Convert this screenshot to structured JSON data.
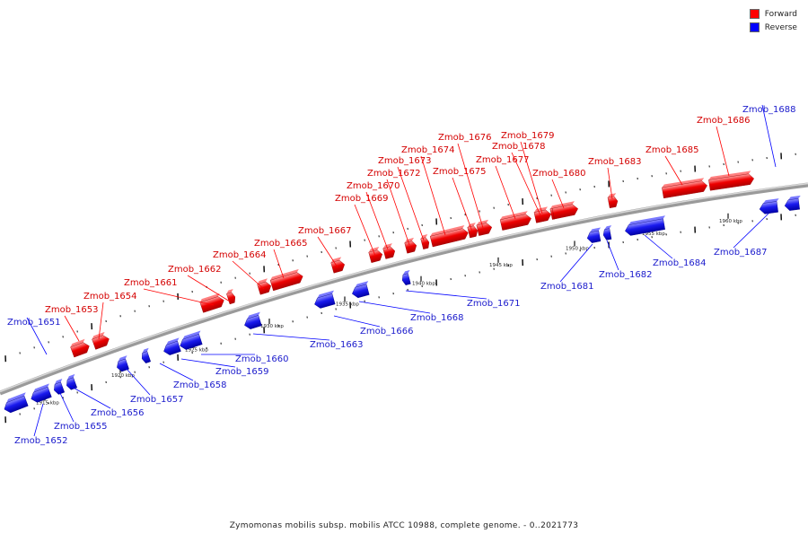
{
  "legend": {
    "forward_label": "Forward",
    "reverse_label": "Reverse",
    "forward_color": "#ff0000",
    "reverse_color": "#0000ff"
  },
  "caption": "Zymomonas mobilis subsp. mobilis ATCC 10988, complete genome. - 0..2021773",
  "axis": {
    "tick_labels": [
      "1915 kbp",
      "1920 kbp",
      "1925 kbp",
      "1930 kbp",
      "1935 kbp",
      "1940 kbp",
      "1945 kbp",
      "1950 kbp",
      "1955 kbp",
      "1960 kbp"
    ]
  },
  "genes": [
    {
      "name": "Zmob_1651",
      "strand": "reverse"
    },
    {
      "name": "Zmob_1652",
      "strand": "reverse"
    },
    {
      "name": "Zmob_1653",
      "strand": "forward"
    },
    {
      "name": "Zmob_1654",
      "strand": "forward"
    },
    {
      "name": "Zmob_1655",
      "strand": "reverse"
    },
    {
      "name": "Zmob_1656",
      "strand": "reverse"
    },
    {
      "name": "Zmob_1657",
      "strand": "reverse"
    },
    {
      "name": "Zmob_1658",
      "strand": "reverse"
    },
    {
      "name": "Zmob_1659",
      "strand": "reverse"
    },
    {
      "name": "Zmob_1660",
      "strand": "reverse"
    },
    {
      "name": "Zmob_1661",
      "strand": "forward"
    },
    {
      "name": "Zmob_1662",
      "strand": "forward"
    },
    {
      "name": "Zmob_1663",
      "strand": "reverse"
    },
    {
      "name": "Zmob_1664",
      "strand": "forward"
    },
    {
      "name": "Zmob_1665",
      "strand": "forward"
    },
    {
      "name": "Zmob_1666",
      "strand": "reverse"
    },
    {
      "name": "Zmob_1667",
      "strand": "forward"
    },
    {
      "name": "Zmob_1668",
      "strand": "reverse"
    },
    {
      "name": "Zmob_1669",
      "strand": "forward"
    },
    {
      "name": "Zmob_1670",
      "strand": "forward"
    },
    {
      "name": "Zmob_1671",
      "strand": "reverse"
    },
    {
      "name": "Zmob_1672",
      "strand": "forward"
    },
    {
      "name": "Zmob_1673",
      "strand": "forward"
    },
    {
      "name": "Zmob_1674",
      "strand": "forward"
    },
    {
      "name": "Zmob_1675",
      "strand": "forward"
    },
    {
      "name": "Zmob_1676",
      "strand": "forward"
    },
    {
      "name": "Zmob_1677",
      "strand": "forward"
    },
    {
      "name": "Zmob_1678",
      "strand": "forward"
    },
    {
      "name": "Zmob_1679",
      "strand": "forward"
    },
    {
      "name": "Zmob_1680",
      "strand": "forward"
    },
    {
      "name": "Zmob_1681",
      "strand": "reverse"
    },
    {
      "name": "Zmob_1682",
      "strand": "reverse"
    },
    {
      "name": "Zmob_1683",
      "strand": "forward"
    },
    {
      "name": "Zmob_1684",
      "strand": "reverse"
    },
    {
      "name": "Zmob_1685",
      "strand": "forward"
    },
    {
      "name": "Zmob_1686",
      "strand": "forward"
    },
    {
      "name": "Zmob_1687",
      "strand": "reverse"
    },
    {
      "name": "Zmob_1688",
      "strand": "reverse"
    }
  ]
}
